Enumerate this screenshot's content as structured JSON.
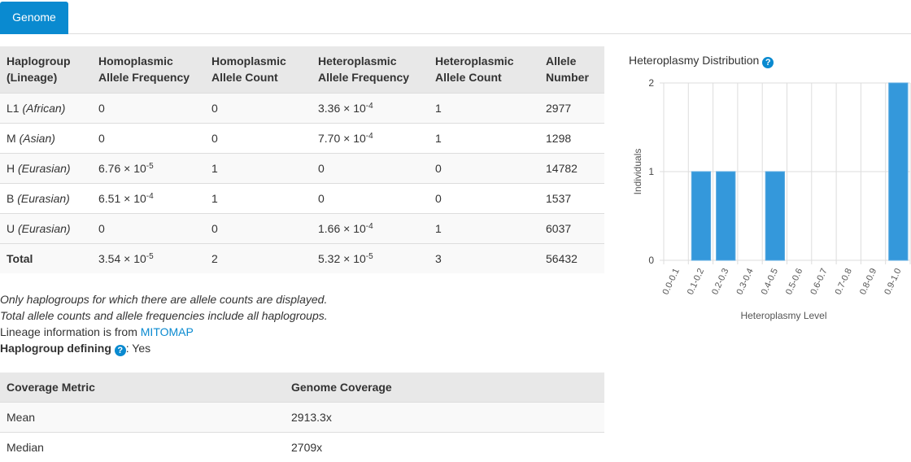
{
  "tabs": [
    {
      "label": "Genome",
      "active": true
    }
  ],
  "haplo_table": {
    "headers": [
      [
        "Haplogroup",
        "(Lineage)"
      ],
      [
        "Homoplasmic",
        "Allele Frequency"
      ],
      [
        "Homoplasmic",
        "Allele Count"
      ],
      [
        "Heteroplasmic",
        "Allele Frequency"
      ],
      [
        "Heteroplasmic",
        "Allele Count"
      ],
      [
        "Allele",
        "Number"
      ]
    ],
    "rows": [
      {
        "haplogroup": "L1",
        "lineage": "(African)",
        "hom_freq": "0",
        "hom_exp": "",
        "hom_count": "0",
        "het_freq": "3.36 × 10",
        "het_exp": "-4",
        "het_count": "1",
        "allele_number": "2977"
      },
      {
        "haplogroup": "M",
        "lineage": "(Asian)",
        "hom_freq": "0",
        "hom_exp": "",
        "hom_count": "0",
        "het_freq": "7.70 × 10",
        "het_exp": "-4",
        "het_count": "1",
        "allele_number": "1298"
      },
      {
        "haplogroup": "H",
        "lineage": "(Eurasian)",
        "hom_freq": "6.76 × 10",
        "hom_exp": "-5",
        "hom_count": "1",
        "het_freq": "0",
        "het_exp": "",
        "het_count": "0",
        "allele_number": "14782"
      },
      {
        "haplogroup": "B",
        "lineage": "(Eurasian)",
        "hom_freq": "6.51 × 10",
        "hom_exp": "-4",
        "hom_count": "1",
        "het_freq": "0",
        "het_exp": "",
        "het_count": "0",
        "allele_number": "1537"
      },
      {
        "haplogroup": "U",
        "lineage": "(Eurasian)",
        "hom_freq": "0",
        "hom_exp": "",
        "hom_count": "0",
        "het_freq": "1.66 × 10",
        "het_exp": "-4",
        "het_count": "1",
        "allele_number": "6037"
      }
    ],
    "total": {
      "label": "Total",
      "hom_freq": "3.54 × 10",
      "hom_exp": "-5",
      "hom_count": "2",
      "het_freq": "5.32 × 10",
      "het_exp": "-5",
      "het_count": "3",
      "allele_number": "56432"
    }
  },
  "notes": {
    "line1": "Only haplogroups for which there are allele counts are displayed.",
    "line2": "Total allele counts and allele frequencies include all haplogroups.",
    "lineage_prefix": "Lineage information is from ",
    "lineage_link": "MITOMAP",
    "defining_label": "Haplogroup defining",
    "defining_value": ": Yes"
  },
  "coverage_table": {
    "headers": [
      "Coverage Metric",
      "Genome Coverage"
    ],
    "rows": [
      [
        "Mean",
        "2913.3x"
      ],
      [
        "Median",
        "2709x"
      ]
    ]
  },
  "chart_data": {
    "type": "bar",
    "title": "Heteroplasmy Distribution",
    "xlabel": "Heteroplasmy Level",
    "ylabel": "Individuals",
    "categories": [
      "0.0-0.1",
      "0.1-0.2",
      "0.2-0.3",
      "0.3-0.4",
      "0.4-0.5",
      "0.5-0.6",
      "0.6-0.7",
      "0.7-0.8",
      "0.8-0.9",
      "0.9-1.0"
    ],
    "values": [
      0,
      1,
      1,
      0,
      1,
      0,
      0,
      0,
      0,
      2
    ],
    "ylim": [
      0,
      2
    ],
    "yticks": [
      0,
      1,
      2
    ],
    "grid": true,
    "bar_color": "#3498db"
  }
}
